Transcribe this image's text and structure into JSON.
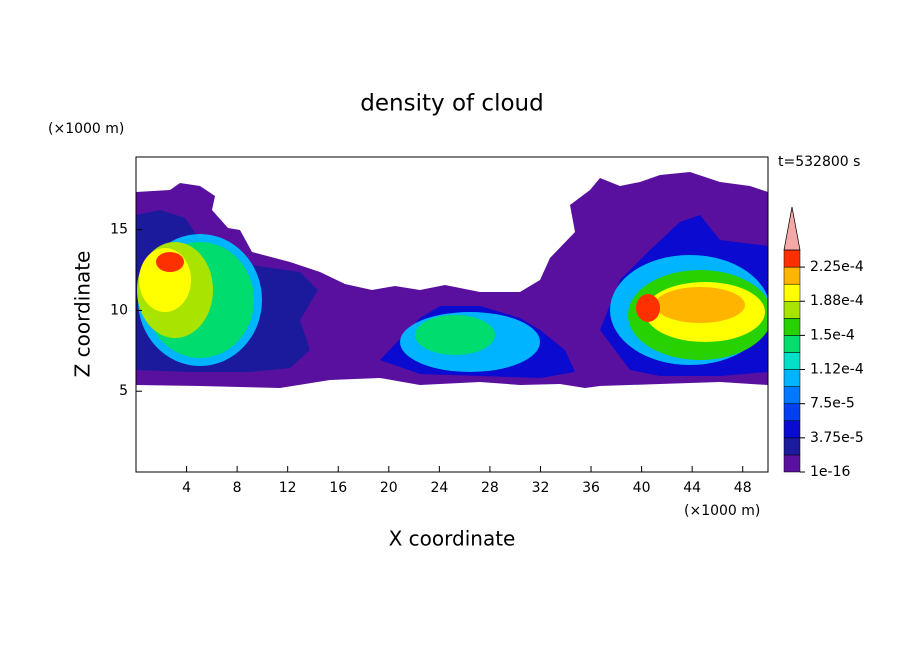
{
  "chart_data": {
    "type": "contour",
    "title": "density of cloud",
    "x_label": "X coordinate",
    "y_label": "Z coordinate",
    "x_unit": "(×1000 m)",
    "y_unit": "(×1000 m)",
    "time_label": "t=532800 s",
    "xlim": [
      0,
      50
    ],
    "xticks": [
      4,
      8,
      12,
      16,
      20,
      24,
      28,
      32,
      36,
      40,
      44,
      48
    ],
    "ylim": [
      0,
      19.5
    ],
    "yticks": [
      5,
      10,
      15
    ],
    "colorbar": {
      "levels": [
        1e-16,
        1.875e-05,
        3.75e-05,
        5.625e-05,
        7.5e-05,
        9.375e-05,
        0.0001125,
        0.00013125,
        0.00015,
        0.00016875,
        0.0001875,
        0.00020625,
        0.000225,
        0.00024375
      ],
      "colors": [
        "#5a109e",
        "#1c1a9c",
        "#0a0ad0",
        "#0040f0",
        "#0078ff",
        "#00b4ff",
        "#00e0c8",
        "#00dc6e",
        "#28d200",
        "#a8e400",
        "#ffff00",
        "#ffb400",
        "#ff3000"
      ],
      "extend_color": "#f4a8a8",
      "ticks": [
        1e-16,
        {
          "value": 3.75e-05,
          "label": "3.75e-5"
        },
        {
          "value": 7.5e-05,
          "label": "7.5e-5"
        },
        {
          "value": 0.0001125,
          "label": "1.12e-4"
        },
        {
          "value": 0.00015,
          "label": "1.5e-4"
        },
        {
          "value": 0.0001875,
          "label": "1.88e-4"
        },
        {
          "value": 0.000225,
          "label": "2.25e-4"
        }
      ]
    }
  }
}
